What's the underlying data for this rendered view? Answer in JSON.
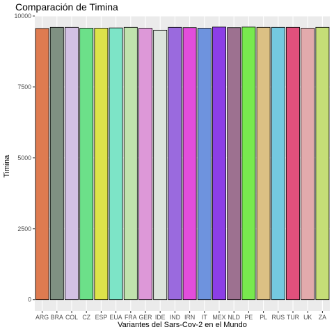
{
  "chart_data": {
    "type": "bar",
    "title": "Comparación de Timina",
    "xlabel": "Variantes del Sars-Cov-2 en el Mundo",
    "ylabel": "Timina",
    "categories": [
      "ARG",
      "BRA",
      "COL",
      "CZ",
      "ESP",
      "EUA",
      "FRA",
      "GER",
      "IDE",
      "IND",
      "IRN",
      "IT",
      "MEX",
      "NLD",
      "PE",
      "PL",
      "RUS",
      "TUR",
      "UK",
      "ZA"
    ],
    "values": [
      9560,
      9600,
      9600,
      9570,
      9570,
      9580,
      9600,
      9570,
      9500,
      9600,
      9590,
      9570,
      9610,
      9590,
      9610,
      9600,
      9600,
      9600,
      9570,
      9600
    ],
    "colors": [
      "#de7b50",
      "#7f9182",
      "#d3c1e4",
      "#6ce089",
      "#dde34a",
      "#7de4c7",
      "#c0e2ad",
      "#dd98d8",
      "#dce4dc",
      "#9a6ade",
      "#e24edb",
      "#6e93de",
      "#8c3ee6",
      "#9d7190",
      "#78e94e",
      "#dbc084",
      "#74c9e0",
      "#e0507c",
      "#e2aaac",
      "#c5de77"
    ],
    "ylim": [
      -400,
      10000
    ],
    "yticks": [
      0,
      2500,
      5000,
      7500,
      10000
    ],
    "ytick_labels": [
      "0",
      "2500",
      "5000",
      "7500",
      "10000"
    ],
    "grid": true,
    "legend": "none"
  }
}
